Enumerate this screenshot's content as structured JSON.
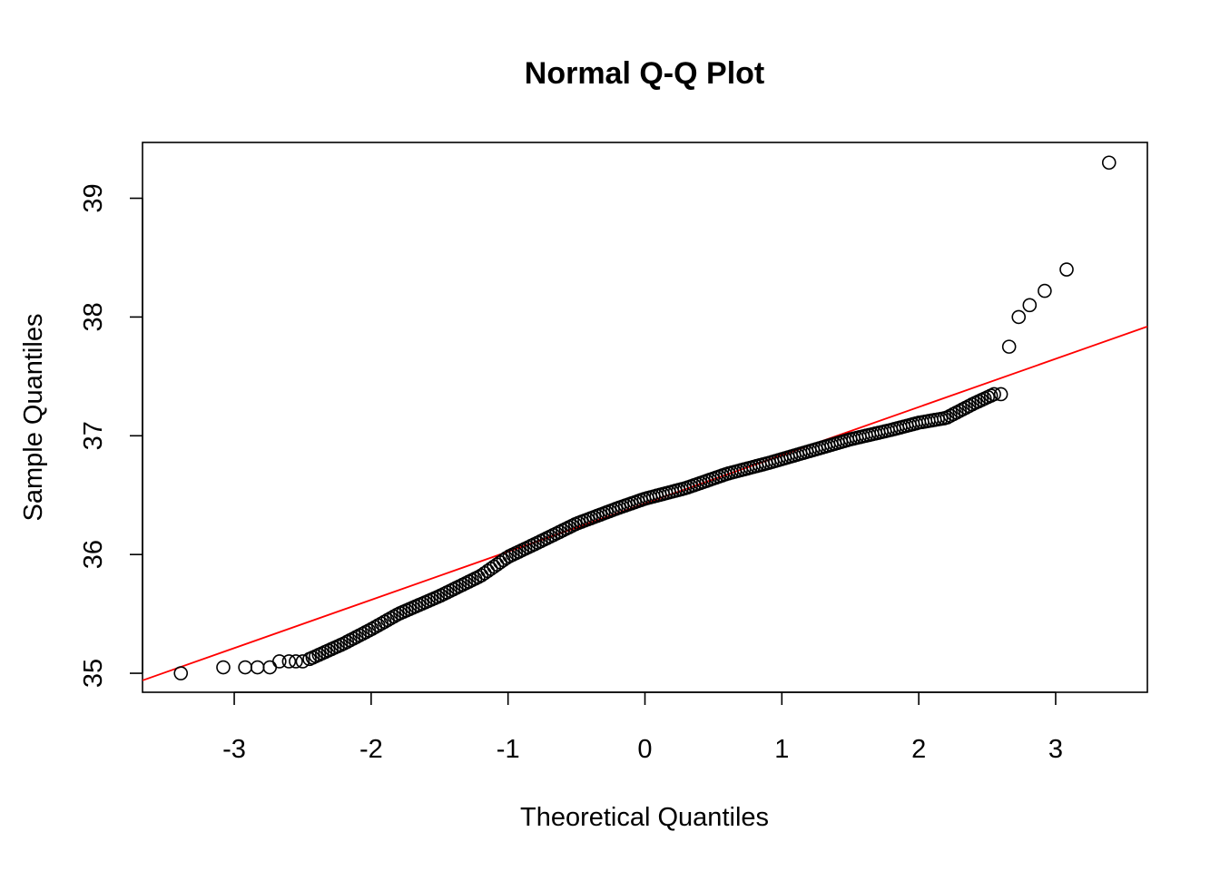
{
  "chart_data": {
    "type": "scatter",
    "title": "Normal Q-Q Plot",
    "xlabel": "Theoretical Quantiles",
    "ylabel": "Sample Quantiles",
    "xlim": [
      -3.67,
      3.67
    ],
    "ylim": [
      34.84,
      39.47
    ],
    "xticks": [
      -3,
      -2,
      -1,
      0,
      1,
      2,
      3
    ],
    "yticks": [
      35,
      36,
      37,
      38,
      39
    ],
    "xtick_labels": [
      "-3",
      "-2",
      "-1",
      "0",
      "1",
      "2",
      "3"
    ],
    "ytick_labels": [
      "35",
      "36",
      "37",
      "38",
      "39"
    ],
    "point_color": "#000000",
    "reference_line": {
      "color": "#ff0000",
      "points": [
        [
          -3.67,
          34.94
        ],
        [
          3.67,
          37.92
        ]
      ]
    },
    "curve_knots": [
      [
        -2.45,
        35.12
      ],
      [
        -2.2,
        35.25
      ],
      [
        -2.0,
        35.37
      ],
      [
        -1.8,
        35.5
      ],
      [
        -1.5,
        35.65
      ],
      [
        -1.2,
        35.82
      ],
      [
        -1.0,
        35.98
      ],
      [
        -0.8,
        36.09
      ],
      [
        -0.5,
        36.26
      ],
      [
        -0.2,
        36.39
      ],
      [
        0.0,
        36.47
      ],
      [
        0.3,
        36.56
      ],
      [
        0.6,
        36.68
      ],
      [
        0.9,
        36.77
      ],
      [
        1.2,
        36.87
      ],
      [
        1.5,
        36.97
      ],
      [
        1.8,
        37.05
      ],
      [
        2.0,
        37.11
      ],
      [
        2.2,
        37.15
      ],
      [
        2.4,
        37.27
      ],
      [
        2.55,
        37.35
      ]
    ],
    "curve_n": 220,
    "points": [
      [
        -3.39,
        35.0
      ],
      [
        -3.08,
        35.05
      ],
      [
        -2.92,
        35.05
      ],
      [
        -2.83,
        35.05
      ],
      [
        -2.74,
        35.05
      ],
      [
        -2.67,
        35.1
      ],
      [
        -2.6,
        35.1
      ],
      [
        -2.55,
        35.1
      ],
      [
        -2.5,
        35.1
      ],
      [
        2.6,
        37.35
      ],
      [
        2.66,
        37.75
      ],
      [
        2.73,
        38.0
      ],
      [
        2.81,
        38.1
      ],
      [
        2.92,
        38.22
      ],
      [
        3.08,
        38.4
      ],
      [
        3.39,
        39.3
      ]
    ]
  }
}
